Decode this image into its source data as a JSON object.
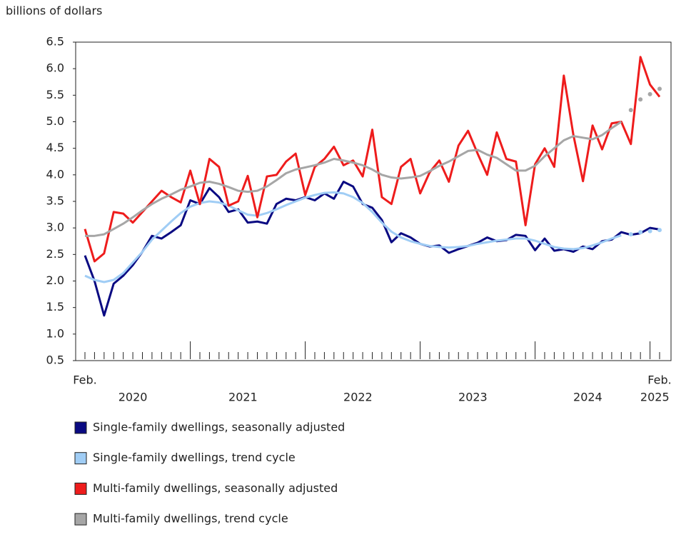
{
  "chart_data": {
    "type": "line",
    "y_axis_title": "billions of dollars",
    "categories": [
      "Feb.",
      null,
      null,
      null,
      null,
      null,
      null,
      null,
      null,
      null,
      null,
      null,
      null,
      null,
      null,
      null,
      null,
      null,
      null,
      null,
      null,
      null,
      null,
      null,
      null,
      null,
      null,
      null,
      null,
      null,
      null,
      null,
      null,
      null,
      null,
      null,
      null,
      null,
      null,
      null,
      null,
      null,
      null,
      null,
      null,
      null,
      null,
      null,
      null,
      null,
      null,
      null,
      null,
      null,
      null,
      null,
      null,
      null,
      null,
      null,
      "Feb."
    ],
    "years": [
      "2020",
      "2021",
      "2022",
      "2023",
      "2024",
      "2025"
    ],
    "ylim": [
      0.5,
      6.5
    ],
    "yticks": [
      0.5,
      {
        "value": 1,
        "label": "1.0"
      },
      1.5,
      {
        "value": 2,
        "label": "2.0"
      },
      2.5,
      {
        "value": 3,
        "label": "3.0"
      },
      3.5,
      {
        "value": 4,
        "label": "4.0"
      },
      4.5,
      {
        "value": 5,
        "label": "5.0"
      },
      5.5,
      {
        "value": 6,
        "label": "6.0"
      },
      6.5
    ],
    "grid": false,
    "series": [
      {
        "name": "Single-family dwellings, seasonally adjusted",
        "color": "#0a0a82",
        "values": [
          2.48,
          2.0,
          1.35,
          1.95,
          2.1,
          2.3,
          2.55,
          2.85,
          2.8,
          2.92,
          3.05,
          3.52,
          3.45,
          3.75,
          3.58,
          3.3,
          3.35,
          3.1,
          3.12,
          3.08,
          3.45,
          3.55,
          3.52,
          3.58,
          3.52,
          3.65,
          3.55,
          3.87,
          3.78,
          3.45,
          3.38,
          3.15,
          2.73,
          2.9,
          2.82,
          2.7,
          2.65,
          2.67,
          2.53,
          2.6,
          2.66,
          2.72,
          2.82,
          2.75,
          2.77,
          2.87,
          2.85,
          2.58,
          2.8,
          2.57,
          2.6,
          2.55,
          2.65,
          2.6,
          2.75,
          2.78,
          2.92,
          2.87,
          2.9,
          3.0,
          2.97
        ]
      },
      {
        "name": "Single-family dwellings, trend cycle",
        "color": "#a0cdf5",
        "dotted_last": 4,
        "values": [
          2.1,
          2.02,
          1.98,
          2.02,
          2.15,
          2.35,
          2.55,
          2.78,
          2.95,
          3.12,
          3.28,
          3.4,
          3.47,
          3.5,
          3.48,
          3.42,
          3.33,
          3.25,
          3.23,
          3.28,
          3.35,
          3.43,
          3.5,
          3.57,
          3.62,
          3.66,
          3.67,
          3.65,
          3.58,
          3.47,
          3.3,
          3.1,
          2.93,
          2.82,
          2.75,
          2.7,
          2.66,
          2.64,
          2.63,
          2.64,
          2.66,
          2.7,
          2.73,
          2.76,
          2.78,
          2.8,
          2.8,
          2.76,
          2.7,
          2.64,
          2.61,
          2.6,
          2.62,
          2.67,
          2.73,
          2.8,
          2.86,
          2.88,
          2.92,
          2.94,
          2.96
        ]
      },
      {
        "name": "Multi-family dwellings, seasonally adjusted",
        "color": "#ee1c1c",
        "values": [
          2.98,
          2.37,
          2.52,
          3.3,
          3.27,
          3.1,
          3.3,
          3.5,
          3.7,
          3.58,
          3.48,
          4.08,
          3.45,
          4.3,
          4.15,
          3.42,
          3.5,
          3.98,
          3.2,
          3.97,
          4.0,
          4.25,
          4.4,
          3.62,
          4.15,
          4.3,
          4.53,
          4.18,
          4.27,
          3.97,
          4.85,
          3.58,
          3.45,
          4.15,
          4.3,
          3.65,
          4.05,
          4.27,
          3.87,
          4.55,
          4.83,
          4.4,
          4.0,
          4.8,
          4.3,
          4.25,
          3.05,
          4.2,
          4.5,
          4.15,
          5.87,
          4.75,
          3.88,
          4.93,
          4.48,
          4.97,
          5.0,
          4.58,
          6.22,
          5.7,
          5.47
        ]
      },
      {
        "name": "Multi-family dwellings, trend cycle",
        "color": "#a6a6a6",
        "dotted_last": 4,
        "values": [
          2.85,
          2.85,
          2.88,
          2.98,
          3.08,
          3.2,
          3.33,
          3.45,
          3.55,
          3.63,
          3.72,
          3.78,
          3.85,
          3.87,
          3.83,
          3.77,
          3.7,
          3.68,
          3.7,
          3.78,
          3.9,
          4.03,
          4.1,
          4.14,
          4.18,
          4.23,
          4.3,
          4.27,
          4.23,
          4.18,
          4.1,
          4.0,
          3.95,
          3.93,
          3.95,
          3.98,
          4.07,
          4.17,
          4.25,
          4.35,
          4.45,
          4.47,
          4.38,
          4.32,
          4.2,
          4.08,
          4.08,
          4.17,
          4.35,
          4.5,
          4.65,
          4.73,
          4.7,
          4.67,
          4.75,
          4.88,
          5.0,
          5.22,
          5.42,
          5.52,
          5.62
        ]
      }
    ]
  }
}
